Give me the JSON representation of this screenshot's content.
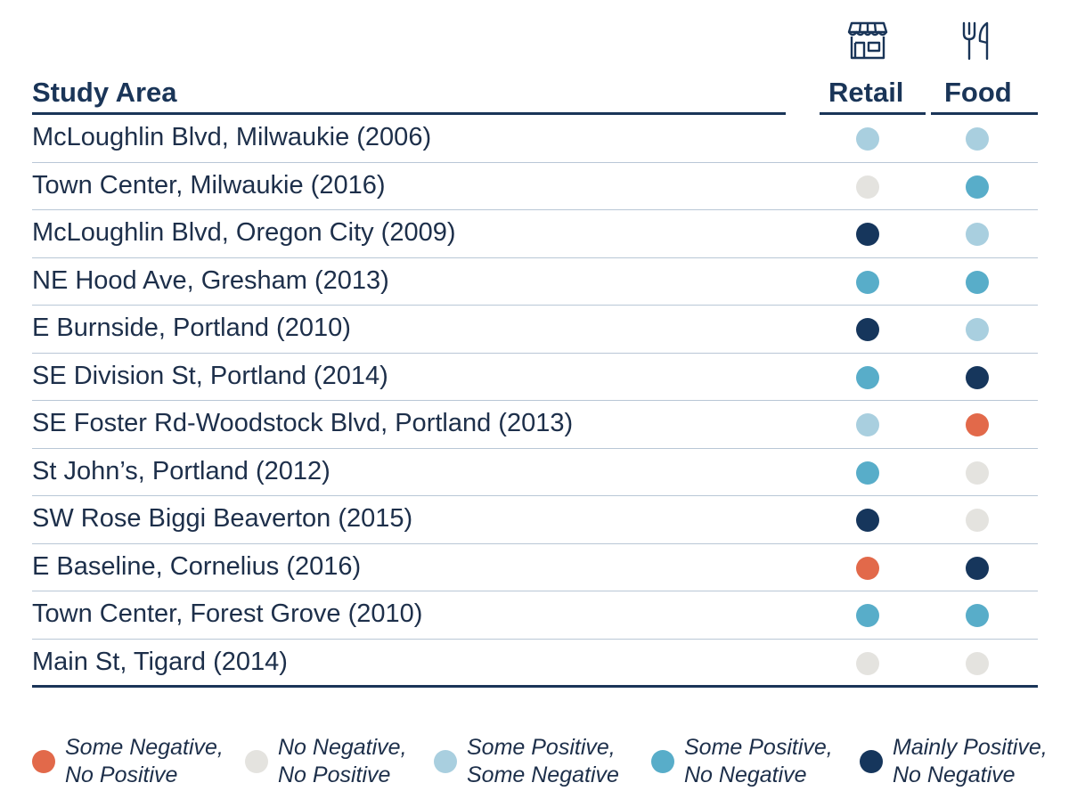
{
  "header": {
    "study_area": "Study Area",
    "retail": "Retail",
    "food": "Food",
    "retail_icon": "store-icon",
    "food_icon": "fork-knife-icon"
  },
  "colors": {
    "some_negative_no_positive": "#e2694a",
    "no_negative_no_positive": "#e4e3df",
    "some_positive_some_negative": "#a9cfdf",
    "some_positive_no_negative": "#58adc9",
    "mainly_positive_no_negative": "#16365c"
  },
  "rows": [
    {
      "name": "McLoughlin Blvd, Milwaukie (2006)",
      "retail": "some_positive_some_negative",
      "food": "some_positive_some_negative"
    },
    {
      "name": "Town Center, Milwaukie (2016)",
      "retail": "no_negative_no_positive",
      "food": "some_positive_no_negative"
    },
    {
      "name": "McLoughlin Blvd, Oregon City (2009)",
      "retail": "mainly_positive_no_negative",
      "food": "some_positive_some_negative"
    },
    {
      "name": "NE Hood Ave, Gresham (2013)",
      "retail": "some_positive_no_negative",
      "food": "some_positive_no_negative"
    },
    {
      "name": "E Burnside, Portland (2010)",
      "retail": "mainly_positive_no_negative",
      "food": "some_positive_some_negative"
    },
    {
      "name": "SE Division St, Portland (2014)",
      "retail": "some_positive_no_negative",
      "food": "mainly_positive_no_negative"
    },
    {
      "name": "SE Foster Rd-Woodstock Blvd, Portland (2013)",
      "retail": "some_positive_some_negative",
      "food": "some_negative_no_positive"
    },
    {
      "name": "St John’s, Portland (2012)",
      "retail": "some_positive_no_negative",
      "food": "no_negative_no_positive"
    },
    {
      "name": "SW Rose Biggi Beaverton (2015)",
      "retail": "mainly_positive_no_negative",
      "food": "no_negative_no_positive"
    },
    {
      "name": "E Baseline, Cornelius (2016)",
      "retail": "some_negative_no_positive",
      "food": "mainly_positive_no_negative"
    },
    {
      "name": "Town Center, Forest Grove (2010)",
      "retail": "some_positive_no_negative",
      "food": "some_positive_no_negative"
    },
    {
      "name": "Main St, Tigard (2014)",
      "retail": "no_negative_no_positive",
      "food": "no_negative_no_positive"
    }
  ],
  "legend": [
    {
      "key": "some_negative_no_positive",
      "line1": "Some Negative,",
      "line2": "No Positive"
    },
    {
      "key": "no_negative_no_positive",
      "line1": "No Negative,",
      "line2": "No Positive"
    },
    {
      "key": "some_positive_some_negative",
      "line1": "Some Positive,",
      "line2": "Some Negative"
    },
    {
      "key": "some_positive_no_negative",
      "line1": "Some Positive,",
      "line2": "No Negative"
    },
    {
      "key": "mainly_positive_no_negative",
      "line1": "Mainly Positive,",
      "line2": "No Negative"
    }
  ]
}
